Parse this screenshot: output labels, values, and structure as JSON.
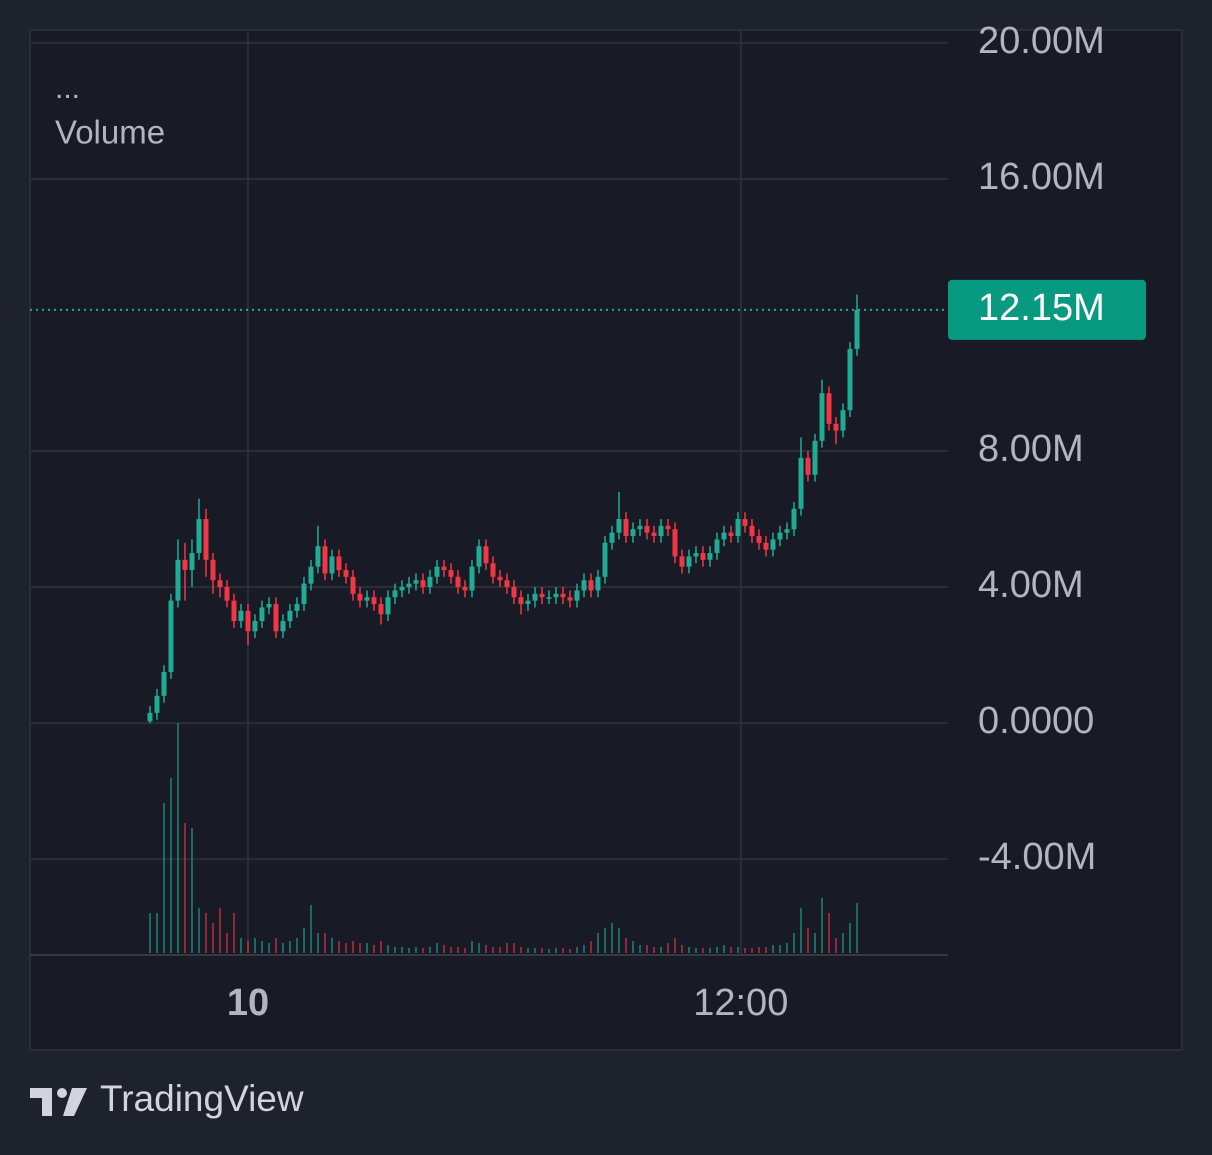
{
  "chart_data": {
    "type": "candlestick",
    "menu": "...",
    "volume_name": "Volume",
    "brand": "TradingView",
    "up_color": "#22ab94",
    "down_color": "#f23645",
    "open": [
      0.05,
      0.3,
      0.8,
      1.5,
      3.6,
      4.8,
      4.5,
      5.0,
      6.0,
      4.8,
      4.2,
      4.0,
      3.6,
      3.0,
      3.3,
      2.7,
      3.0,
      3.4,
      3.5,
      2.7,
      3.0,
      3.3,
      3.5,
      4.1,
      4.6,
      5.2,
      4.4,
      4.9,
      4.5,
      4.3,
      3.8,
      3.6,
      3.7,
      3.5,
      3.2,
      3.7,
      3.9,
      4.0,
      4.1,
      4.2,
      4.0,
      4.3,
      4.6,
      4.5,
      4.3,
      4.0,
      3.9,
      4.6,
      5.2,
      4.7,
      4.3,
      4.2,
      4.0,
      3.7,
      3.5,
      3.6,
      3.8,
      3.7,
      3.7,
      3.8,
      3.7,
      3.6,
      3.9,
      4.2,
      3.9,
      4.3,
      5.3,
      5.6,
      6.0,
      5.5,
      5.7,
      5.8,
      5.6,
      5.5,
      5.8,
      5.7,
      4.9,
      4.6,
      4.9,
      5.0,
      4.8,
      5.0,
      5.4,
      5.6,
      5.5,
      6.0,
      5.8,
      5.5,
      5.3,
      5.1,
      5.4,
      5.6,
      5.7,
      6.3,
      7.8,
      7.3,
      8.3,
      9.7,
      8.8,
      8.6,
      9.2,
      11.0
    ],
    "high": [
      0.5,
      1.0,
      1.7,
      3.8,
      5.4,
      5.3,
      5.4,
      6.6,
      6.3,
      5.0,
      4.4,
      4.2,
      3.8,
      3.5,
      3.5,
      3.2,
      3.6,
      3.7,
      3.7,
      3.2,
      3.5,
      3.7,
      4.3,
      4.8,
      5.8,
      5.4,
      5.1,
      5.1,
      4.7,
      4.5,
      4.0,
      3.9,
      3.9,
      3.7,
      3.9,
      4.1,
      4.2,
      4.3,
      4.4,
      4.4,
      4.5,
      4.8,
      4.8,
      4.7,
      4.5,
      4.2,
      4.8,
      5.4,
      5.4,
      4.9,
      4.5,
      4.4,
      4.2,
      3.9,
      3.8,
      4.0,
      4.0,
      3.9,
      4.0,
      4.0,
      3.9,
      4.1,
      4.4,
      4.4,
      4.5,
      5.5,
      5.8,
      6.8,
      6.2,
      5.9,
      6.0,
      6.0,
      5.8,
      6.0,
      6.0,
      5.9,
      5.1,
      5.1,
      5.2,
      5.2,
      5.2,
      5.6,
      5.8,
      5.8,
      6.2,
      6.2,
      6.0,
      5.7,
      5.5,
      5.6,
      5.8,
      5.9,
      6.5,
      8.4,
      8.0,
      8.5,
      10.1,
      9.9,
      9.0,
      9.4,
      11.2,
      12.6
    ],
    "low": [
      0.0,
      0.1,
      0.6,
      1.3,
      3.4,
      3.6,
      4.0,
      4.8,
      4.3,
      3.8,
      3.7,
      3.4,
      2.8,
      2.8,
      2.3,
      2.5,
      2.8,
      3.2,
      2.5,
      2.5,
      2.8,
      3.1,
      3.3,
      3.9,
      4.4,
      4.2,
      4.2,
      4.3,
      4.1,
      3.6,
      3.4,
      3.4,
      3.3,
      2.9,
      3.0,
      3.5,
      3.7,
      3.8,
      3.9,
      3.8,
      3.8,
      4.1,
      4.3,
      4.1,
      3.8,
      3.7,
      3.7,
      4.4,
      4.5,
      4.1,
      4.0,
      3.8,
      3.5,
      3.2,
      3.3,
      3.4,
      3.5,
      3.5,
      3.5,
      3.5,
      3.4,
      3.4,
      3.7,
      3.7,
      3.7,
      4.1,
      5.1,
      5.4,
      5.3,
      5.3,
      5.5,
      5.4,
      5.3,
      5.3,
      5.5,
      4.7,
      4.4,
      4.4,
      4.7,
      4.6,
      4.6,
      4.8,
      5.2,
      5.3,
      5.3,
      5.6,
      5.3,
      5.1,
      4.9,
      4.9,
      5.2,
      5.4,
      5.5,
      6.1,
      7.1,
      7.1,
      8.1,
      8.6,
      8.2,
      8.4,
      9.0,
      10.8
    ],
    "close": [
      0.3,
      0.8,
      1.5,
      3.6,
      4.8,
      4.5,
      5.0,
      6.0,
      4.8,
      4.2,
      4.0,
      3.6,
      3.0,
      3.3,
      2.7,
      3.0,
      3.4,
      3.5,
      2.7,
      3.0,
      3.3,
      3.5,
      4.1,
      4.6,
      5.2,
      4.4,
      4.9,
      4.5,
      4.3,
      3.8,
      3.6,
      3.7,
      3.5,
      3.2,
      3.7,
      3.9,
      4.0,
      4.1,
      4.2,
      4.0,
      4.3,
      4.6,
      4.5,
      4.3,
      4.0,
      3.9,
      4.6,
      5.2,
      4.7,
      4.3,
      4.2,
      4.0,
      3.7,
      3.5,
      3.6,
      3.8,
      3.7,
      3.7,
      3.8,
      3.7,
      3.6,
      3.9,
      4.2,
      3.9,
      4.3,
      5.3,
      5.6,
      6.0,
      5.5,
      5.7,
      5.8,
      5.6,
      5.5,
      5.8,
      5.7,
      4.9,
      4.6,
      4.9,
      5.0,
      4.8,
      5.0,
      5.4,
      5.6,
      5.5,
      6.0,
      5.8,
      5.5,
      5.3,
      5.1,
      5.4,
      5.6,
      5.7,
      6.3,
      7.8,
      7.3,
      8.3,
      9.7,
      8.8,
      8.6,
      9.2,
      11.0,
      12.15
    ],
    "volume": [
      40,
      40,
      150,
      175,
      230,
      130,
      125,
      45,
      40,
      30,
      45,
      20,
      40,
      15,
      12,
      15,
      12,
      10,
      15,
      10,
      12,
      15,
      25,
      48,
      20,
      20,
      15,
      12,
      10,
      12,
      10,
      10,
      8,
      12,
      8,
      6,
      6,
      5,
      6,
      5,
      6,
      10,
      8,
      6,
      6,
      5,
      12,
      10,
      8,
      6,
      6,
      10,
      10,
      6,
      5,
      5,
      5,
      4,
      5,
      5,
      4,
      6,
      8,
      12,
      20,
      25,
      30,
      25,
      15,
      12,
      8,
      8,
      6,
      6,
      10,
      15,
      8,
      6,
      5,
      5,
      5,
      6,
      8,
      6,
      6,
      5,
      5,
      6,
      6,
      8,
      8,
      10,
      20,
      45,
      25,
      20,
      55,
      40,
      15,
      20,
      30,
      50
    ],
    "last_price": {
      "value": 12.15,
      "label": "12.15M"
    },
    "ylim": [
      -6.82,
      20.38
    ],
    "yticks": [
      {
        "value": 20,
        "label": "20.00M"
      },
      {
        "value": 16,
        "label": "16.00M"
      },
      {
        "value": 8,
        "label": "8.00M"
      },
      {
        "value": 4,
        "label": "4.00M"
      },
      {
        "value": 0,
        "label": "0.0000"
      },
      {
        "value": -4,
        "label": "-4.00M"
      }
    ],
    "xlim": [
      -17.14,
      114
    ],
    "xticks": [
      {
        "value": 14,
        "label": "10"
      },
      {
        "value": 84.4,
        "label": "12:00"
      }
    ],
    "grid": true
  }
}
